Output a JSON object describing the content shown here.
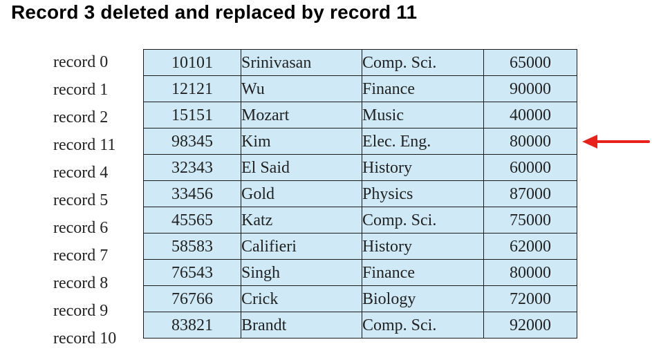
{
  "title": "Record 3 deleted and replaced by record 11",
  "colors": {
    "cell_fill": "#cfeaf6",
    "border": "#1a1a1a",
    "arrow": "#e8221b"
  },
  "highlighted_row": 3,
  "rows": [
    {
      "label": "record 0",
      "id": "10101",
      "name": "Srinivasan",
      "dept": "Comp. Sci.",
      "salary": "65000"
    },
    {
      "label": "record 1",
      "id": "12121",
      "name": "Wu",
      "dept": "Finance",
      "salary": "90000"
    },
    {
      "label": "record 2",
      "id": "15151",
      "name": "Mozart",
      "dept": "Music",
      "salary": "40000"
    },
    {
      "label": "record 11",
      "id": "98345",
      "name": "Kim",
      "dept": "Elec. Eng.",
      "salary": "80000"
    },
    {
      "label": "record 4",
      "id": "32343",
      "name": "El Said",
      "dept": "History",
      "salary": "60000"
    },
    {
      "label": "record 5",
      "id": "33456",
      "name": "Gold",
      "dept": "Physics",
      "salary": "87000"
    },
    {
      "label": "record 6",
      "id": "45565",
      "name": "Katz",
      "dept": "Comp. Sci.",
      "salary": "75000"
    },
    {
      "label": "record 7",
      "id": "58583",
      "name": "Califieri",
      "dept": "History",
      "salary": "62000"
    },
    {
      "label": "record 8",
      "id": "76543",
      "name": "Singh",
      "dept": "Finance",
      "salary": "80000"
    },
    {
      "label": "record 9",
      "id": "76766",
      "name": "Crick",
      "dept": "Biology",
      "salary": "72000"
    },
    {
      "label": "record 10",
      "id": "83821",
      "name": "Brandt",
      "dept": "Comp. Sci.",
      "salary": "92000"
    }
  ]
}
